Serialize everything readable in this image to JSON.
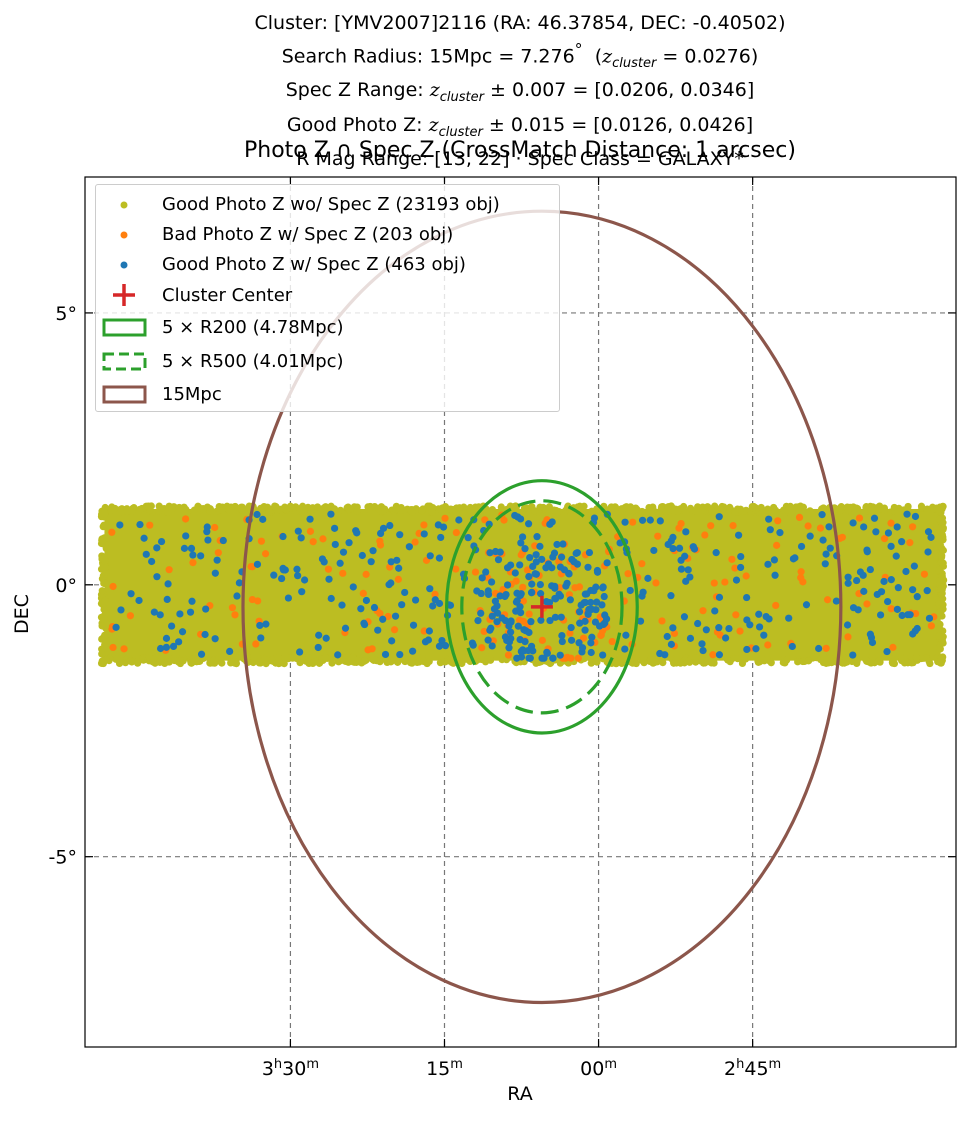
{
  "header": {
    "line1": "Cluster: [YMV2007]2116 (RA: 46.37854, DEC: -0.40502)",
    "line2_prefix": "Search Radius: 15Mpc = 7.276",
    "line2_deg": "°",
    "line2_paren_open": "(",
    "line2_z": "z",
    "line2_sub": "cluster",
    "line2_suffix": "= 0.0276)",
    "line3_prefix": "Spec Z Range:",
    "line3_z": "z",
    "line3_sub": "cluster",
    "line3_suffix": "± 0.007 = [0.0206, 0.0346]",
    "line4_prefix": "Good Photo Z:",
    "line4_z": "z",
    "line4_sub": "cluster",
    "line4_suffix": "± 0.015 = [0.0126, 0.0426]",
    "line5": "R Mag Range: [13, 22] · Spec Class = GALAXY*"
  },
  "chart_data": {
    "type": "scatter",
    "title": "Photo Z ∩ Spec Z (CrossMatch Distance: 1 arcsec)",
    "xlabel": "RA",
    "ylabel": "DEC",
    "x_unit": "deg",
    "xlim": [
      57.5,
      36.3
    ],
    "ylim": [
      -8.5,
      7.5
    ],
    "x_ticks": [
      {
        "value": 52.5,
        "h": "3",
        "hs": "h",
        "m": "30",
        "ms": "m"
      },
      {
        "value": 48.75,
        "h": "",
        "hs": "",
        "m": "15",
        "ms": "m"
      },
      {
        "value": 45.0,
        "h": "",
        "hs": "",
        "m": "00",
        "ms": "m"
      },
      {
        "value": 41.25,
        "h": "2",
        "hs": "h",
        "m": "45",
        "ms": "m"
      }
    ],
    "y_ticks": [
      {
        "value": 5,
        "label": "5°"
      },
      {
        "value": 0,
        "label": "0°"
      },
      {
        "value": -5,
        "label": "-5°"
      }
    ],
    "grid": true,
    "legend_position": "top-left",
    "colors": {
      "good_no_spec": "#bcbd22",
      "bad_with_spec": "#ff7f0e",
      "good_with_spec": "#1f77b4",
      "center": "#d62728",
      "r200": "#2ca02c",
      "r500": "#2ca02c",
      "circle15": "#8c564b"
    },
    "center": {
      "ra": 46.37854,
      "dec": -0.40502
    },
    "band": {
      "ra_min": 36.6,
      "ra_max": 57.1,
      "dec_min": -1.45,
      "dec_max": 1.45
    },
    "circles": [
      {
        "key": "r200",
        "radius_deg": 2.32,
        "dashed": false
      },
      {
        "key": "r500",
        "radius_deg": 1.95,
        "dashed": true
      },
      {
        "key": "circle15",
        "radius_deg": 7.276,
        "dashed": false
      }
    ],
    "series": [
      {
        "name": "Good Photo Z wo/ Spec Z (23193 obj)",
        "key": "good_no_spec",
        "count": 23193
      },
      {
        "name": "Bad Photo Z w/ Spec Z (203 obj)",
        "key": "bad_with_spec",
        "count": 203
      },
      {
        "name": "Good Photo Z w/ Spec Z (463 obj)",
        "key": "good_with_spec",
        "count": 463
      }
    ],
    "legend": [
      {
        "label": "Good Photo Z wo/ Spec Z (23193 obj)",
        "marker": "dot",
        "color_key": "good_no_spec"
      },
      {
        "label": "Bad Photo Z w/ Spec Z (203 obj)",
        "marker": "dot",
        "color_key": "bad_with_spec"
      },
      {
        "label": "Good Photo Z w/ Spec Z (463 obj)",
        "marker": "dot",
        "color_key": "good_with_spec"
      },
      {
        "label": "Cluster Center",
        "marker": "plus",
        "color_key": "center"
      },
      {
        "label": "5 × R200 (4.78Mpc)",
        "marker": "box",
        "color_key": "r200"
      },
      {
        "label": "5 × R500 (4.01Mpc)",
        "marker": "dashbox",
        "color_key": "r500"
      },
      {
        "label": "15Mpc",
        "marker": "box",
        "color_key": "circle15"
      }
    ]
  }
}
